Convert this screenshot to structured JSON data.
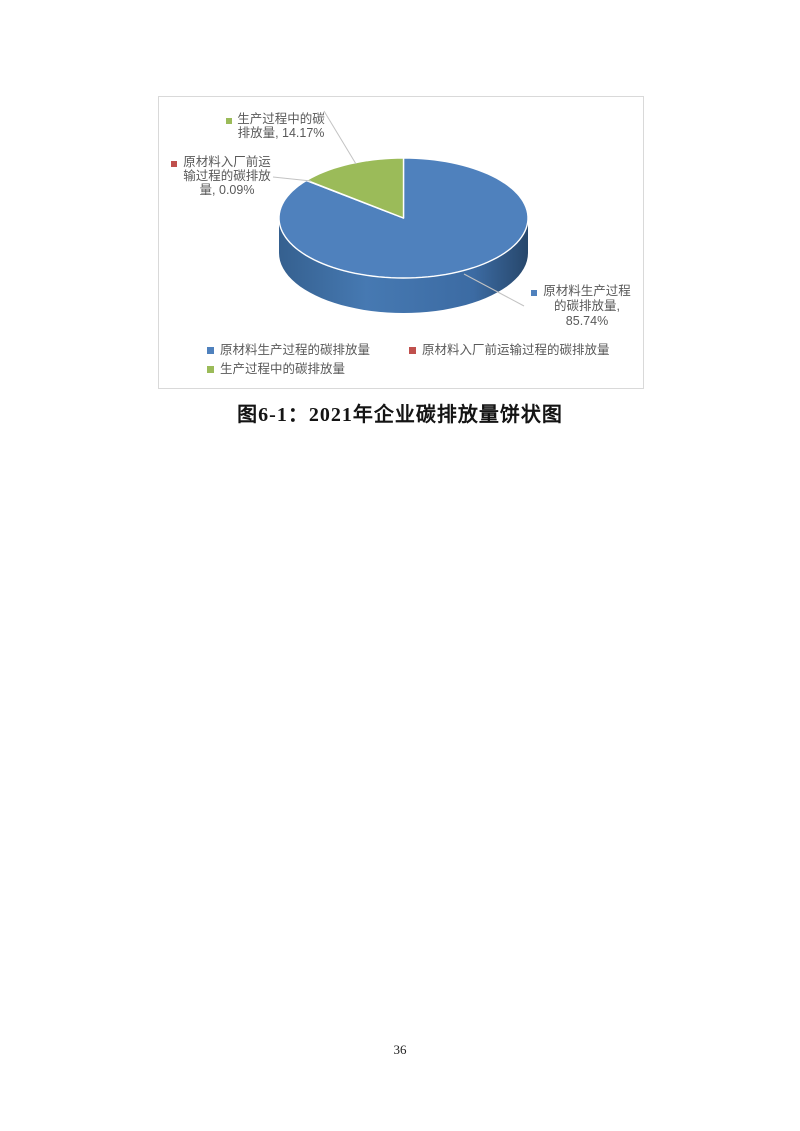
{
  "caption": "图6-1：2021年企业碳排放量饼状图",
  "page_number": "36",
  "chart_data": {
    "type": "pie",
    "is_3d": true,
    "title": "",
    "start_angle_deg": 0,
    "direction": "clockwise",
    "slices": [
      {
        "name": "raw-material-production",
        "label": "原材料生产过程的碳排放量",
        "value": 85.74,
        "unit": "%",
        "color": "#4F81BD"
      },
      {
        "name": "pre-factory-transport",
        "label": "原材料入厂前运输过程的碳排放量",
        "value": 0.09,
        "unit": "%",
        "color": "#C0504D"
      },
      {
        "name": "production-process",
        "label": "生产过程中的碳排放量",
        "value": 14.17,
        "unit": "%",
        "color": "#9BBB59"
      }
    ],
    "data_labels": {
      "production_process": {
        "lines": [
          "生产过程中的碳",
          "排放量, 14.17%"
        ]
      },
      "pre_factory_transport": {
        "lines": [
          "原材料入厂前运",
          "输过程的碳排放",
          "量, 0.09%"
        ]
      },
      "raw_material_production": {
        "lines": [
          "原材料生产过程",
          "的碳排放量,",
          "85.74%"
        ]
      }
    },
    "legend_position": "bottom",
    "legend": [
      {
        "label": "原材料生产过程的碳排放量",
        "color": "#4F81BD"
      },
      {
        "label": "原材料入厂前运输过程的碳排放量",
        "color": "#C0504D"
      },
      {
        "label": "生产过程中的碳排放量",
        "color": "#9BBB59"
      }
    ],
    "leader_line_color": "#c3c3c3",
    "label_text_color": "#595959"
  }
}
